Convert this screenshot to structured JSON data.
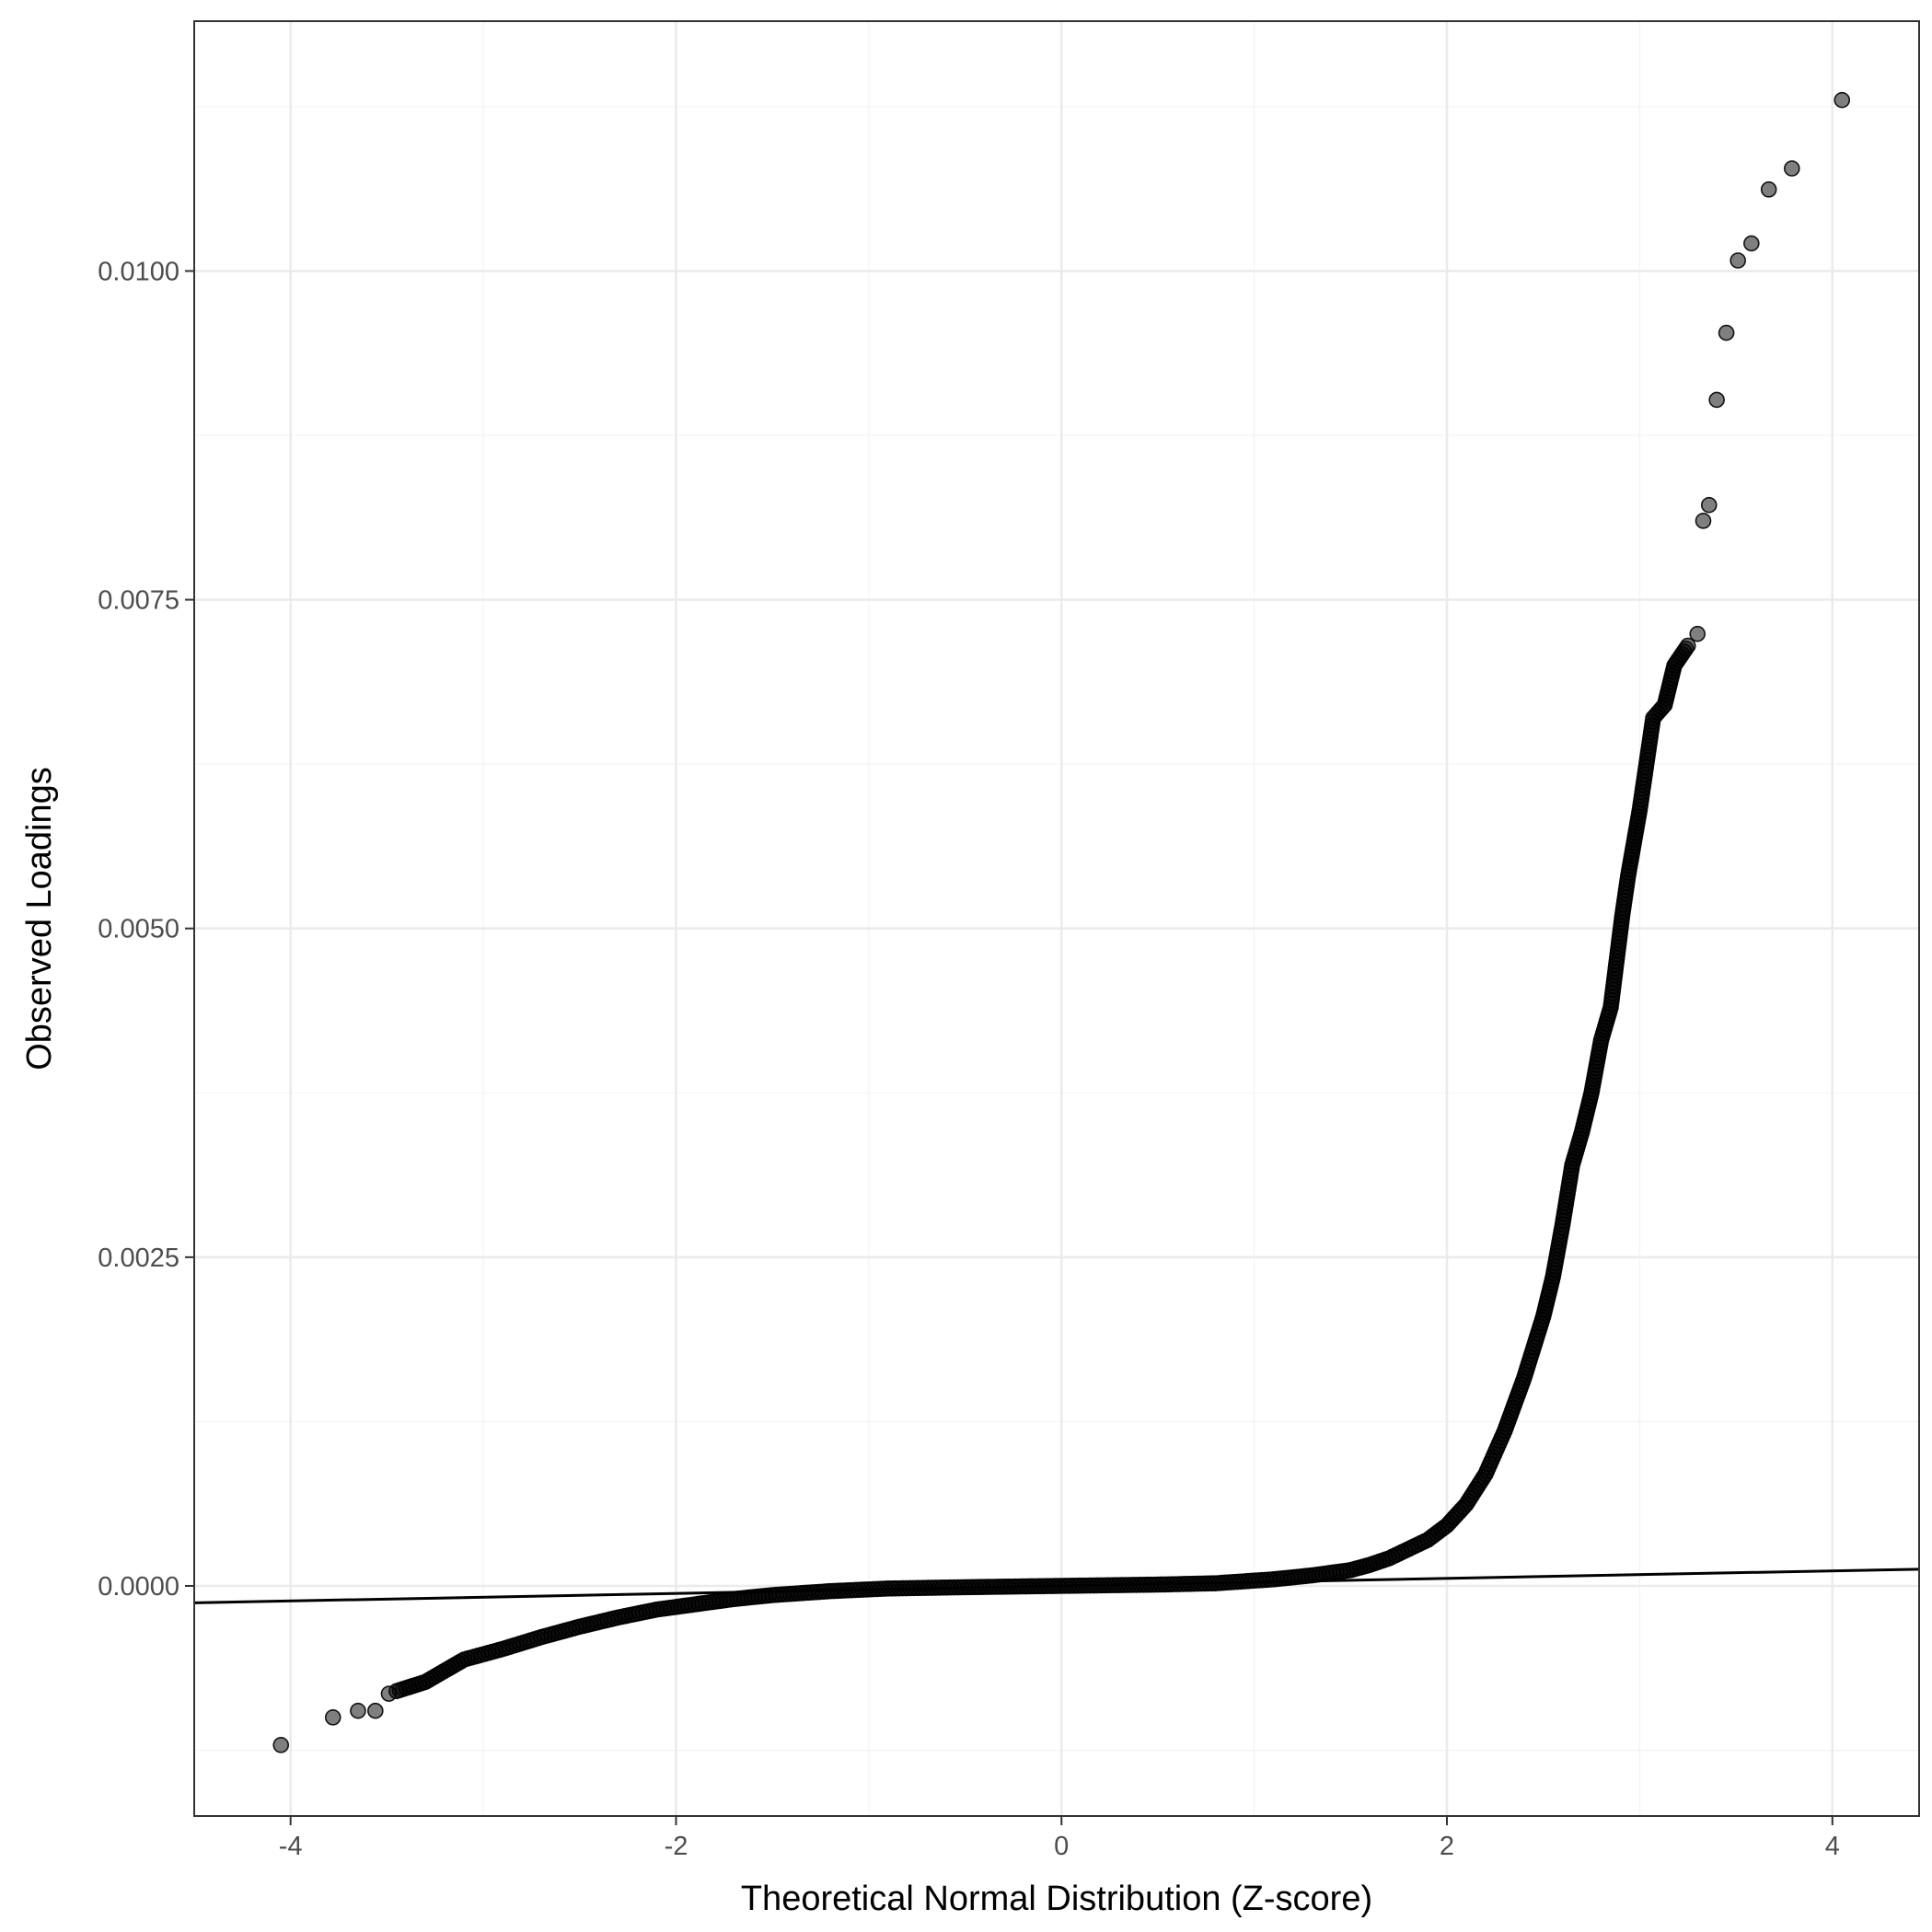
{
  "chart_data": {
    "type": "scatter",
    "title": "",
    "xlabel": "Theoretical Normal Distribution (Z-score)",
    "ylabel": "Observed Loadings",
    "xlim": [
      -4.5,
      4.45
    ],
    "ylim": [
      -0.00175,
      0.0119
    ],
    "x_ticks": [
      -4,
      -2,
      0,
      2,
      4
    ],
    "x_tick_labels": [
      "-4",
      "-2",
      "0",
      "2",
      "4"
    ],
    "y_ticks": [
      0.0,
      0.0025,
      0.005,
      0.0075,
      0.01
    ],
    "y_tick_labels": [
      "0.0000",
      "0.0025",
      "0.0050",
      "0.0075",
      "0.0100"
    ],
    "grid": true,
    "legend": "none",
    "colors": {
      "point": "#000000",
      "point_opacity": 0.5,
      "reference_line": "#000000",
      "grid_major": "#ebebeb",
      "grid_minor": "#f4f4f4",
      "panel_border": "#333333",
      "tick_text": "#4d4d4d"
    },
    "reference_line": {
      "slope": 2.86e-05,
      "intercept": 0.0
    },
    "outliers": [
      {
        "x": -4.05,
        "y": -0.00121
      },
      {
        "x": -3.78,
        "y": -0.001
      },
      {
        "x": -3.65,
        "y": -0.00095
      },
      {
        "x": -3.56,
        "y": -0.00095
      },
      {
        "x": -3.49,
        "y": -0.00082
      },
      {
        "x": 3.3,
        "y": 0.00724
      },
      {
        "x": 3.33,
        "y": 0.0081
      },
      {
        "x": 3.36,
        "y": 0.00822
      },
      {
        "x": 3.4,
        "y": 0.00902
      },
      {
        "x": 3.45,
        "y": 0.00953
      },
      {
        "x": 3.51,
        "y": 0.01008
      },
      {
        "x": 3.58,
        "y": 0.01021
      },
      {
        "x": 3.67,
        "y": 0.01062
      },
      {
        "x": 3.79,
        "y": 0.01078
      },
      {
        "x": 4.05,
        "y": 0.0113
      }
    ],
    "quantile_curve": [
      {
        "x": -3.45,
        "y": -0.0008
      },
      {
        "x": -3.3,
        "y": -0.00073
      },
      {
        "x": -3.1,
        "y": -0.00056
      },
      {
        "x": -2.9,
        "y": -0.00048
      },
      {
        "x": -2.7,
        "y": -0.00039
      },
      {
        "x": -2.5,
        "y": -0.00031
      },
      {
        "x": -2.3,
        "y": -0.00024
      },
      {
        "x": -2.1,
        "y": -0.00018
      },
      {
        "x": -1.9,
        "y": -0.00014
      },
      {
        "x": -1.7,
        "y": -0.0001
      },
      {
        "x": -1.5,
        "y": -7e-05
      },
      {
        "x": -1.2,
        "y": -4e-05
      },
      {
        "x": -0.9,
        "y": -2e-05
      },
      {
        "x": -0.5,
        "y": -1e-05
      },
      {
        "x": 0.0,
        "y": 0.0
      },
      {
        "x": 0.5,
        "y": 1e-05
      },
      {
        "x": 0.8,
        "y": 2e-05
      },
      {
        "x": 1.1,
        "y": 5e-05
      },
      {
        "x": 1.3,
        "y": 8e-05
      },
      {
        "x": 1.5,
        "y": 0.00012
      },
      {
        "x": 1.6,
        "y": 0.00016
      },
      {
        "x": 1.7,
        "y": 0.00021
      },
      {
        "x": 1.8,
        "y": 0.00028
      },
      {
        "x": 1.9,
        "y": 0.00035
      },
      {
        "x": 2.0,
        "y": 0.00046
      },
      {
        "x": 2.1,
        "y": 0.00062
      },
      {
        "x": 2.2,
        "y": 0.00085
      },
      {
        "x": 2.3,
        "y": 0.00118
      },
      {
        "x": 2.4,
        "y": 0.00158
      },
      {
        "x": 2.5,
        "y": 0.00205
      },
      {
        "x": 2.55,
        "y": 0.00235
      },
      {
        "x": 2.6,
        "y": 0.00275
      },
      {
        "x": 2.65,
        "y": 0.0032
      },
      {
        "x": 2.7,
        "y": 0.00345
      },
      {
        "x": 2.75,
        "y": 0.00375
      },
      {
        "x": 2.8,
        "y": 0.00415
      },
      {
        "x": 2.85,
        "y": 0.0044
      },
      {
        "x": 2.88,
        "y": 0.00475
      },
      {
        "x": 2.91,
        "y": 0.0051
      },
      {
        "x": 2.94,
        "y": 0.0054
      },
      {
        "x": 2.97,
        "y": 0.00565
      },
      {
        "x": 3.0,
        "y": 0.0059
      },
      {
        "x": 3.03,
        "y": 0.0062
      },
      {
        "x": 3.07,
        "y": 0.0066
      },
      {
        "x": 3.13,
        "y": 0.0067
      },
      {
        "x": 3.18,
        "y": 0.007
      },
      {
        "x": 3.25,
        "y": 0.00715
      }
    ]
  }
}
